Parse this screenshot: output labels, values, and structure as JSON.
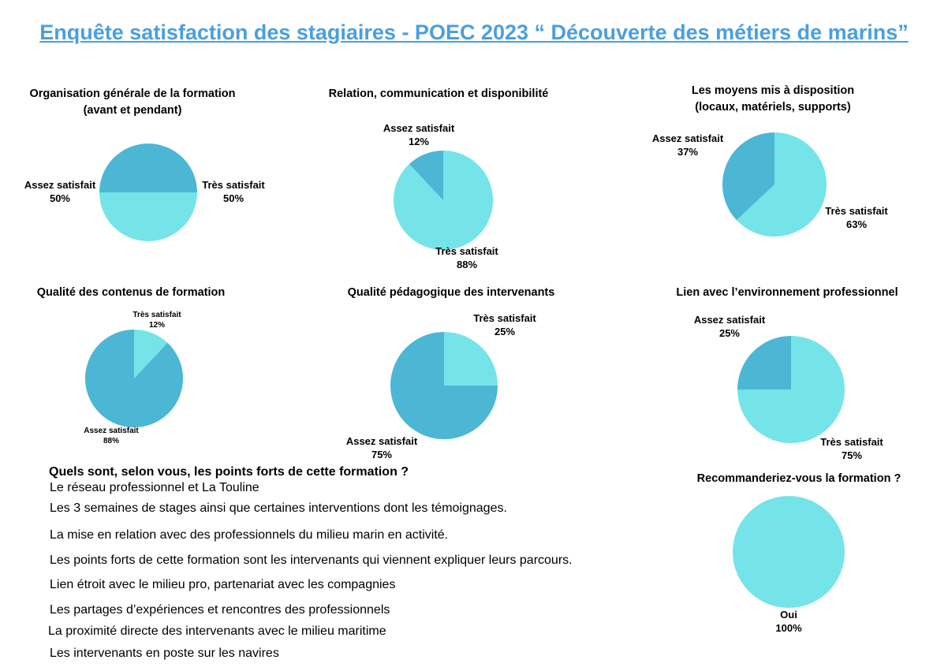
{
  "title": "Enquête satisfaction des stagiaires - POEC 2023 “ Découverte des métiers de marins”",
  "colors": {
    "tres_satisfait": "#74e4e8",
    "assez_satisfait": "#4bb7d4",
    "title": "#4a9fe0"
  },
  "chart_data": [
    {
      "type": "pie",
      "title": "Organisation générale de la formation\n(avant et pendant)",
      "slices": [
        {
          "label": "Très satisfait",
          "value": 50,
          "pct": "50%"
        },
        {
          "label": "Assez satisfait",
          "value": 50,
          "pct": "50%"
        }
      ]
    },
    {
      "type": "pie",
      "title": "Relation, communication et disponibilité",
      "slices": [
        {
          "label": "Très satisfait",
          "value": 88,
          "pct": "88%"
        },
        {
          "label": "Assez satisfait",
          "value": 12,
          "pct": "12%"
        }
      ]
    },
    {
      "type": "pie",
      "title": "Les moyens mis à disposition\n(locaux, matériels, supports)",
      "slices": [
        {
          "label": "Très satisfait",
          "value": 63,
          "pct": "63%"
        },
        {
          "label": "Assez satisfait",
          "value": 37,
          "pct": "37%"
        }
      ]
    },
    {
      "type": "pie",
      "title": "Qualité des contenus de formation",
      "slices": [
        {
          "label": "Très satisfait",
          "value": 12,
          "pct": "12%"
        },
        {
          "label": "Assez satisfait",
          "value": 88,
          "pct": "88%"
        }
      ]
    },
    {
      "type": "pie",
      "title": "Qualité pédagogique des intervenants",
      "slices": [
        {
          "label": "Très satisfait",
          "value": 25,
          "pct": "25%"
        },
        {
          "label": "Assez satisfait",
          "value": 75,
          "pct": "75%"
        }
      ]
    },
    {
      "type": "pie",
      "title": "Lien avec l’environnement professionnel",
      "slices": [
        {
          "label": "Très satisfait",
          "value": 75,
          "pct": "75%"
        },
        {
          "label": "Assez satisfait",
          "value": 25,
          "pct": "25%"
        }
      ]
    },
    {
      "type": "pie",
      "title": "Recommanderiez-vous la formation ?",
      "slices": [
        {
          "label": "Oui",
          "value": 100,
          "pct": "100%"
        }
      ]
    }
  ],
  "points_forts": {
    "question": "Quels sont, selon vous, les points forts de cette formation ?",
    "answers": [
      "Le réseau professionnel et La Touline",
      "Les 3 semaines de stages ainsi que certaines interventions dont les témoignages.",
      "La mise en relation avec des professionnels du milieu marin en activité.",
      "Les points forts de cette formation sont les intervenants qui viennent expliquer leurs parcours.",
      "Lien étroit avec le milieu pro, partenariat avec les compagnies",
      "Les partages d’expériences et rencontres des professionnels",
      "La proximité directe des intervenants avec le milieu maritime",
      "Les intervenants en poste sur les navires"
    ]
  }
}
